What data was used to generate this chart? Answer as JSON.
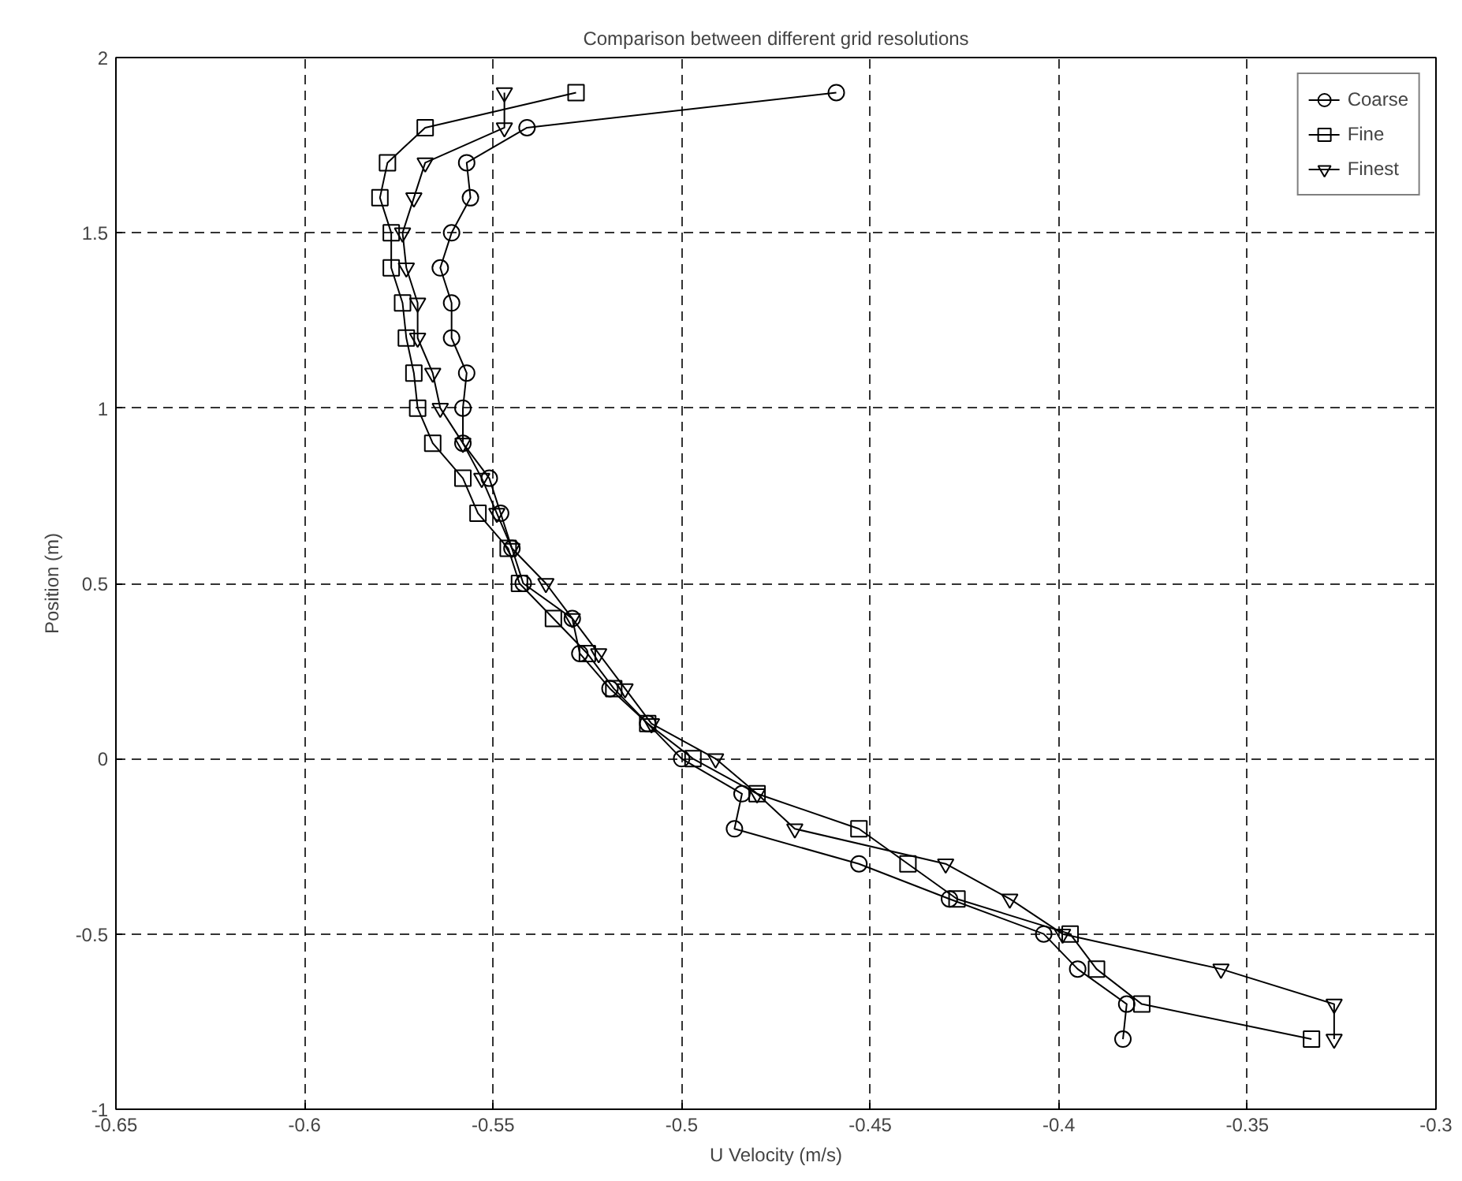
{
  "chart_data": {
    "type": "line",
    "title": "Comparison between different grid resolutions",
    "xlabel": "U Velocity (m/s)",
    "ylabel": "Position (m)",
    "xlim": [
      -0.65,
      -0.3
    ],
    "xticks": [
      -0.65,
      -0.6,
      -0.55,
      -0.5,
      -0.45,
      -0.4,
      -0.35,
      -0.3
    ],
    "ylim": [
      -1,
      2
    ],
    "yticks": [
      -1,
      -0.5,
      0,
      0.5,
      1,
      1.5,
      2
    ],
    "grid": true,
    "legend": "top right",
    "line_style": "solid",
    "series": [
      {
        "name": "Coarse",
        "color": "#000000",
        "marker": "circle",
        "x": [
          -0.383,
          -0.382,
          -0.395,
          -0.404,
          -0.429,
          -0.453,
          -0.486,
          -0.484,
          -0.5,
          -0.509,
          -0.519,
          -0.527,
          -0.529,
          -0.542,
          -0.545,
          -0.548,
          -0.551,
          -0.558,
          -0.558,
          -0.557,
          -0.561,
          -0.561,
          -0.564,
          -0.561,
          -0.556,
          -0.557,
          -0.541,
          -0.459
        ],
        "values": [
          -0.8,
          -0.7,
          -0.6,
          -0.5,
          -0.4,
          -0.3,
          -0.2,
          -0.1,
          0,
          0.1,
          0.2,
          0.3,
          0.4,
          0.5,
          0.6,
          0.7,
          0.8,
          0.9,
          1,
          1.1,
          1.2,
          1.3,
          1.4,
          1.5,
          1.6,
          1.7,
          1.8,
          1.9
        ]
      },
      {
        "name": "Fine",
        "color": "#000000",
        "marker": "square",
        "x": [
          -0.333,
          -0.378,
          -0.39,
          -0.397,
          -0.427,
          -0.44,
          -0.453,
          -0.48,
          -0.497,
          -0.509,
          -0.518,
          -0.525,
          -0.534,
          -0.543,
          -0.546,
          -0.554,
          -0.558,
          -0.566,
          -0.57,
          -0.571,
          -0.573,
          -0.574,
          -0.577,
          -0.577,
          -0.58,
          -0.578,
          -0.568,
          -0.528
        ],
        "values": [
          -0.8,
          -0.7,
          -0.6,
          -0.5,
          -0.4,
          -0.3,
          -0.2,
          -0.1,
          0,
          0.1,
          0.2,
          0.3,
          0.4,
          0.5,
          0.6,
          0.7,
          0.8,
          0.9,
          1,
          1.1,
          1.2,
          1.3,
          1.4,
          1.5,
          1.6,
          1.7,
          1.8,
          1.9
        ]
      },
      {
        "name": "Finest",
        "color": "#000000",
        "marker": "triangle",
        "x": [
          -0.327,
          -0.327,
          -0.357,
          -0.399,
          -0.413,
          -0.43,
          -0.47,
          -0.48,
          -0.491,
          -0.508,
          -0.515,
          -0.522,
          -0.529,
          -0.536,
          -0.545,
          -0.549,
          -0.553,
          -0.558,
          -0.564,
          -0.566,
          -0.57,
          -0.57,
          -0.573,
          -0.574,
          -0.571,
          -0.568,
          -0.547,
          -0.547
        ],
        "values": [
          -0.8,
          -0.7,
          -0.6,
          -0.5,
          -0.4,
          -0.3,
          -0.2,
          -0.1,
          0,
          0.1,
          0.2,
          0.3,
          0.4,
          0.5,
          0.6,
          0.7,
          0.8,
          0.9,
          1,
          1.1,
          1.2,
          1.3,
          1.4,
          1.5,
          1.6,
          1.7,
          1.8,
          1.9
        ]
      }
    ]
  }
}
